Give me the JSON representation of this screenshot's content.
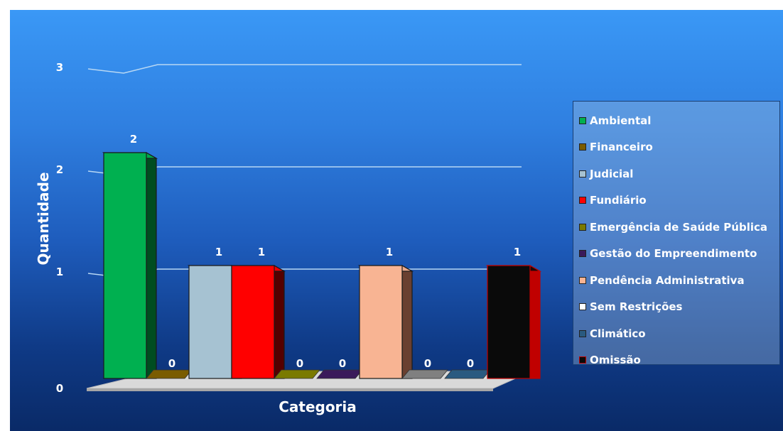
{
  "chart_data": {
    "type": "bar",
    "title": "",
    "xlabel": "Categoria",
    "ylabel": "Quantidade",
    "ylim": [
      0,
      3
    ],
    "yticks": [
      0,
      1,
      2,
      3
    ],
    "grid": true,
    "legend_position": "right",
    "style": "3d-column",
    "categories": [
      "Ambiental",
      "Financeiro",
      "Judicial",
      "Fundiário",
      "Emergência de Saúde Pública",
      "Gestão do Empreendimento",
      "Pendência Administrativa",
      "Sem Restrições",
      "Climático",
      "Omissão"
    ],
    "values": [
      2,
      0,
      1,
      1,
      0,
      0,
      1,
      0,
      0,
      1
    ],
    "colors": [
      "#00b050",
      "#7a5c00",
      "#a6c2d2",
      "#ff0000",
      "#7a7a00",
      "#3a1a5a",
      "#f8b493",
      "#808080",
      "#2a5a80",
      "#0a0a0a"
    ],
    "edge_colors": [
      "#004d20",
      "#3d2e00",
      "#2a3a44",
      "#550000",
      "#3d3d00",
      "#1a0a2a",
      "#6a4030",
      "#404040",
      "#15304a",
      "#c00000"
    ]
  }
}
